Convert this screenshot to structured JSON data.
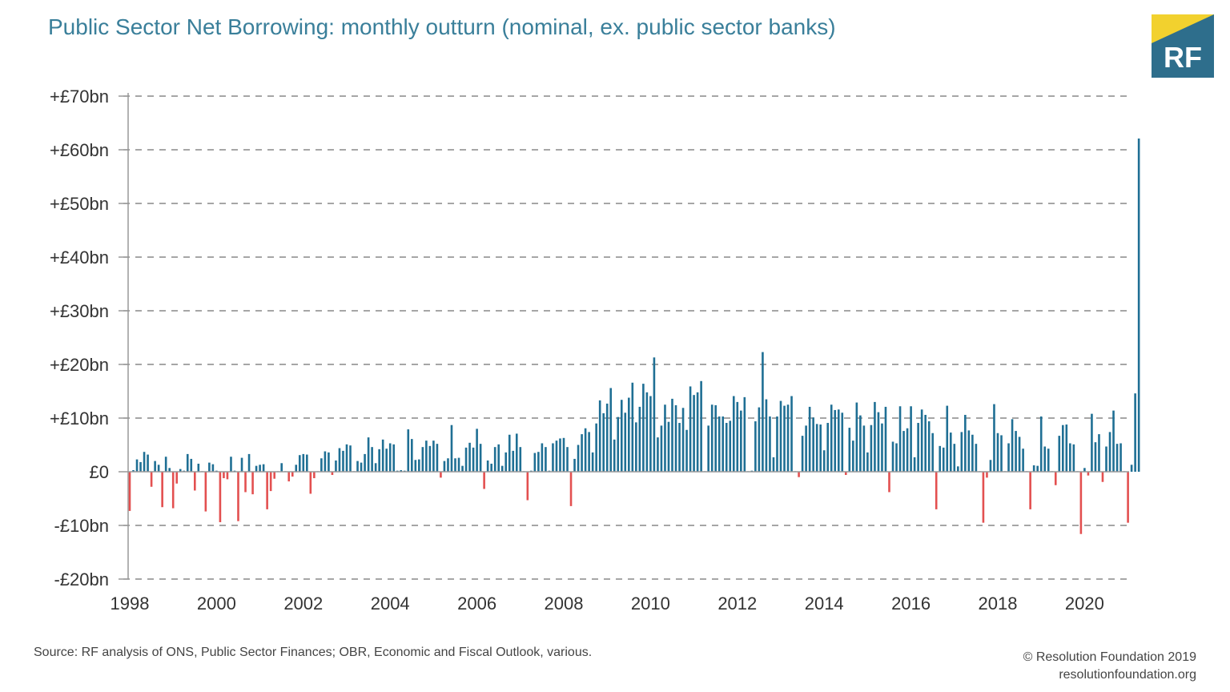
{
  "header": {
    "title": "Public Sector Net Borrowing: monthly outturn (nominal, ex. public sector banks)"
  },
  "logo": {
    "text": "RF",
    "colors": {
      "box": "#2e6e8c",
      "corner": "#f2d12e"
    }
  },
  "footer": {
    "source": "Source: RF analysis of ONS, Public Sector Finances; OBR, Economic and Fiscal Outlook, various.",
    "copyright": "© Resolution Foundation 2019",
    "website": "resolutionfoundation.org"
  },
  "chart_data": {
    "type": "bar",
    "title": "Public Sector Net Borrowing: monthly outturn (nominal, ex. public sector banks)",
    "xlabel": "",
    "ylabel": "",
    "ylim": [
      -20,
      70
    ],
    "xlim": [
      1998,
      2021
    ],
    "grid": true,
    "y_ticks": [
      70,
      60,
      50,
      40,
      30,
      20,
      10,
      0,
      -10,
      -20
    ],
    "y_tick_labels": [
      "+£70bn",
      "+£60bn",
      "+£50bn",
      "+£40bn",
      "+£30bn",
      "+£20bn",
      "+£10bn",
      "£0",
      "-£10bn",
      "-£20bn"
    ],
    "x_ticks": [
      1998,
      2000,
      2002,
      2004,
      2006,
      2008,
      2010,
      2012,
      2014,
      2016,
      2018,
      2020
    ],
    "x_tick_labels": [
      "1998",
      "2000",
      "2002",
      "2004",
      "2006",
      "2008",
      "2010",
      "2012",
      "2014",
      "2016",
      "2018",
      "2020"
    ],
    "units": "£bn",
    "colors": {
      "positive": "#1f6f94",
      "negative": "#e35050",
      "grid": "#a6a6a6",
      "axis": "#999999"
    },
    "series": [
      {
        "name": "1998",
        "values": [
          -7.3,
          0.3,
          2.3,
          1.8,
          3.7,
          3.2,
          -2.8,
          2.0,
          1.3,
          -6.6,
          2.8,
          0.7
        ]
      },
      {
        "name": "1999",
        "values": [
          -6.8,
          -2.2,
          0.5,
          0.2,
          3.3,
          2.4,
          -3.5,
          1.5,
          0.1,
          -7.4,
          1.7,
          1.4
        ]
      },
      {
        "name": "2000",
        "values": [
          0.2,
          -9.4,
          -1.2,
          -1.4,
          2.8,
          0.2,
          -9.2,
          2.6,
          -3.8,
          3.3,
          -4.2,
          1.1
        ]
      },
      {
        "name": "2001",
        "values": [
          1.3,
          1.4,
          -7.0,
          -3.6,
          -1.3,
          0.1,
          1.6,
          0.1,
          -1.8,
          -0.9,
          1.3,
          3.1
        ]
      },
      {
        "name": "2002",
        "values": [
          3.3,
          3.2,
          -4.1,
          -1.2,
          0.1,
          2.5,
          3.8,
          3.6,
          -0.6,
          2.1,
          4.4,
          3.9
        ]
      },
      {
        "name": "2003",
        "values": [
          5.1,
          4.9,
          0.1,
          2.0,
          1.7,
          3.3,
          6.4,
          4.6,
          1.6,
          4.2,
          6.0,
          4.3
        ]
      },
      {
        "name": "2004",
        "values": [
          5.3,
          5.1,
          0.2,
          0.3,
          0.2,
          7.9,
          6.1,
          2.2,
          2.3,
          4.6,
          5.8,
          4.8
        ]
      },
      {
        "name": "2005",
        "values": [
          5.8,
          5.2,
          -1.1,
          2.0,
          2.5,
          8.7,
          2.5,
          2.6,
          1.1,
          4.5,
          5.4,
          4.5
        ]
      },
      {
        "name": "2006",
        "values": [
          8.0,
          5.2,
          -3.2,
          2.1,
          1.5,
          4.6,
          5.1,
          1.1,
          3.6,
          6.9,
          3.9,
          7.1
        ]
      },
      {
        "name": "2007",
        "values": [
          4.6,
          0.1,
          -5.3,
          0.2,
          3.5,
          3.7,
          5.3,
          4.6,
          0.2,
          5.3,
          5.8,
          6.2
        ]
      },
      {
        "name": "2008",
        "values": [
          6.3,
          4.6,
          -6.4,
          2.4,
          5.0,
          7.0,
          8.1,
          7.4,
          3.6,
          9.0,
          13.3,
          10.9
        ]
      },
      {
        "name": "2009",
        "values": [
          12.7,
          15.6,
          6.0,
          10.2,
          13.4,
          11.0,
          13.8,
          16.6,
          9.2,
          12.1,
          16.4,
          14.8
        ]
      },
      {
        "name": "2010",
        "values": [
          14.1,
          21.3,
          6.4,
          8.6,
          12.5,
          9.3,
          13.6,
          12.4,
          9.1,
          11.9,
          7.8,
          15.9
        ]
      },
      {
        "name": "2011",
        "values": [
          14.3,
          14.8,
          16.9,
          0.1,
          8.6,
          12.5,
          12.4,
          10.3,
          10.3,
          9.1,
          9.5,
          14.1
        ]
      },
      {
        "name": "2012",
        "values": [
          13.0,
          11.4,
          13.9,
          0.1,
          0.2,
          9.4,
          12.0,
          22.3,
          13.5,
          10.3,
          2.7,
          10.3
        ]
      },
      {
        "name": "2013",
        "values": [
          13.2,
          12.3,
          12.5,
          14.1,
          0.1,
          -1.0,
          6.7,
          8.6,
          12.1,
          10.1,
          8.9,
          8.8
        ]
      },
      {
        "name": "2014",
        "values": [
          4.0,
          9.1,
          12.5,
          11.5,
          11.6,
          11.0,
          -0.6,
          8.2,
          5.8,
          12.9,
          10.5,
          8.6
        ]
      },
      {
        "name": "2015",
        "values": [
          3.6,
          8.7,
          13.0,
          11.1,
          9.0,
          12.1,
          -3.8,
          5.6,
          5.3,
          12.2,
          7.6,
          8.1
        ]
      },
      {
        "name": "2016",
        "values": [
          12.2,
          2.7,
          9.1,
          11.6,
          10.6,
          9.4,
          7.2,
          -7.0,
          4.8,
          4.5,
          12.3,
          7.3
        ]
      },
      {
        "name": "2017",
        "values": [
          5.2,
          1.0,
          7.4,
          10.6,
          7.7,
          6.9,
          5.2,
          0.1,
          -9.5,
          -1.1,
          2.2,
          12.6
        ]
      },
      {
        "name": "2018",
        "values": [
          7.2,
          6.8,
          0.1,
          5.3,
          9.8,
          7.6,
          6.5,
          4.3,
          0.1,
          -7.0,
          1.2,
          1.1
        ]
      },
      {
        "name": "2019",
        "values": [
          10.3,
          4.7,
          4.3,
          0.1,
          -2.5,
          6.7,
          8.7,
          8.8,
          5.3,
          5.1,
          0.1,
          -11.6
        ]
      },
      {
        "name": "2020",
        "values": [
          0.7,
          -0.7,
          10.8,
          5.5,
          7.0,
          -1.9,
          4.7,
          7.4,
          11.4,
          5.2,
          5.3,
          0.1
        ]
      },
      {
        "name": "2021",
        "values": [
          -9.5,
          1.3,
          14.6,
          62.1
        ]
      }
    ]
  }
}
